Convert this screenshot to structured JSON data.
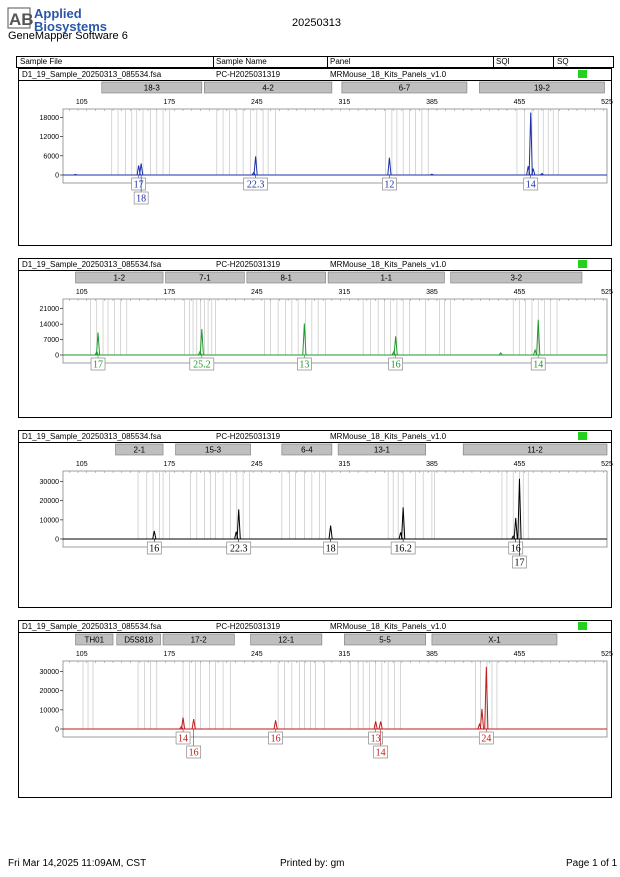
{
  "header": {
    "brand_line1": "Applied",
    "brand_line2": "Biosystems",
    "logo_letters": "AB",
    "app_name": "GeneMapper Software 6",
    "report_date": "20250313",
    "columns": [
      "Sample File",
      "Sample Name",
      "Panel",
      "SQI",
      "SQ"
    ]
  },
  "footer": {
    "timestamp": "Fri Mar 14,2025 11:09AM, CST",
    "printed_by": "Printed by: gm",
    "page": "Page 1 of 1"
  },
  "colors": {
    "blue": "#1b2fa8",
    "green": "#1e9a2a",
    "black": "#000000",
    "red": "#c11a1a",
    "sq_ok": "#23d11e",
    "marker_bar": "#bfbfbf",
    "bin_line": "#bbbbbb"
  },
  "panels": [
    {
      "sample_file": "D1_19_Sample_20250313_085534.fsa",
      "sample_name": "PC-H2025031319",
      "panel_name": "MRMouse_18_Kits_Panels_v1.0",
      "color": "#1b2fa8",
      "chart_data": {
        "type": "line",
        "x_ticks": [
          105,
          175,
          245,
          315,
          385,
          455,
          525
        ],
        "xlim": [
          90,
          525
        ],
        "y_ticks": [
          0,
          6000,
          12000,
          18000
        ],
        "ylim": [
          0,
          20000
        ],
        "markers": [
          {
            "label": "18-3",
            "from": 121,
            "to": 201
          },
          {
            "label": "4-2",
            "from": 203,
            "to": 305
          },
          {
            "label": "6-7",
            "from": 313,
            "to": 413
          },
          {
            "label": "19-2",
            "from": 423,
            "to": 523
          }
        ],
        "bins": [
          129,
          134,
          140,
          145,
          149,
          154,
          160,
          165,
          170,
          175,
          213,
          218,
          223,
          229,
          234,
          240,
          245,
          250,
          254,
          260,
          348,
          353,
          357,
          362,
          367,
          372,
          377,
          382,
          453,
          459,
          465,
          470,
          474,
          478,
          482,
          486
        ],
        "peaks": [
          {
            "x": 150.5,
            "h": 3000
          },
          {
            "x": 152.5,
            "h": 3600
          },
          {
            "x": 244,
            "h": 5800
          },
          {
            "x": 242.5,
            "h": 800
          },
          {
            "x": 351,
            "h": 5400
          },
          {
            "x": 462,
            "h": 2800
          },
          {
            "x": 464,
            "h": 19500
          },
          {
            "x": 466,
            "h": 2000
          },
          {
            "x": 473,
            "h": 500
          },
          {
            "x": 385,
            "h": 250
          },
          {
            "x": 100,
            "h": 200
          }
        ],
        "alleles": [
          {
            "label": "17",
            "x": 150.5,
            "row": 0
          },
          {
            "label": "18",
            "x": 152.5,
            "row": 1
          },
          {
            "label": "22.3",
            "x": 244,
            "row": 0
          },
          {
            "label": "12",
            "x": 351,
            "row": 0
          },
          {
            "label": "14",
            "x": 464,
            "row": 0
          }
        ]
      }
    },
    {
      "sample_file": "D1_19_Sample_20250313_085534.fsa",
      "sample_name": "PC-H2025031319",
      "panel_name": "MRMouse_18_Kits_Panels_v1.0",
      "color": "#1e9a2a",
      "chart_data": {
        "type": "line",
        "x_ticks": [
          105,
          175,
          245,
          315,
          385,
          455,
          525
        ],
        "xlim": [
          90,
          525
        ],
        "y_ticks": [
          0,
          7000,
          14000,
          21000
        ],
        "ylim": [
          0,
          24500
        ],
        "markers": [
          {
            "label": "1-2",
            "from": 100,
            "to": 170
          },
          {
            "label": "7-1",
            "from": 172,
            "to": 235
          },
          {
            "label": "8-1",
            "from": 237,
            "to": 300
          },
          {
            "label": "1-1",
            "from": 302,
            "to": 395
          },
          {
            "label": "3-2",
            "from": 400,
            "to": 505
          }
        ],
        "bins": [
          112,
          117,
          122,
          126,
          131,
          136,
          141,
          187,
          191,
          194,
          197,
          200,
          203,
          206,
          209,
          212,
          251,
          256,
          262,
          268,
          273,
          278,
          284,
          289,
          294,
          300,
          330,
          336,
          342,
          347,
          352,
          357,
          362,
          367,
          380,
          391,
          395,
          400,
          450,
          455,
          460,
          465,
          470,
          475,
          480,
          485
        ],
        "peaks": [
          {
            "x": 118,
            "h": 10200
          },
          {
            "x": 117,
            "h": 1500
          },
          {
            "x": 201,
            "h": 11800
          },
          {
            "x": 199.5,
            "h": 1500
          },
          {
            "x": 283,
            "h": 14300
          },
          {
            "x": 356,
            "h": 8500
          },
          {
            "x": 354.5,
            "h": 1500
          },
          {
            "x": 440,
            "h": 1000
          },
          {
            "x": 470,
            "h": 16000
          },
          {
            "x": 467.5,
            "h": 2200
          }
        ],
        "alleles": [
          {
            "label": "17",
            "x": 118,
            "row": 0
          },
          {
            "label": "25.2",
            "x": 201,
            "row": 0
          },
          {
            "label": "13",
            "x": 283,
            "row": 0
          },
          {
            "label": "16",
            "x": 356,
            "row": 0
          },
          {
            "label": "14",
            "x": 470,
            "row": 0
          }
        ]
      }
    },
    {
      "sample_file": "D1_19_Sample_20250313_085534.fsa",
      "sample_name": "PC-H2025031319",
      "panel_name": "MRMouse_18_Kits_Panels_v1.0",
      "color": "#000000",
      "chart_data": {
        "type": "line",
        "x_ticks": [
          105,
          175,
          245,
          315,
          385,
          455,
          525
        ],
        "xlim": [
          90,
          525
        ],
        "y_ticks": [
          0,
          10000,
          20000,
          30000
        ],
        "ylim": [
          0,
          34500
        ],
        "markers": [
          {
            "label": "2-1",
            "from": 132,
            "to": 170
          },
          {
            "label": "15-3",
            "from": 180,
            "to": 240
          },
          {
            "label": "6-4",
            "from": 265,
            "to": 305
          },
          {
            "label": "13-1",
            "from": 310,
            "to": 380
          },
          {
            "label": "11-2",
            "from": 410,
            "to": 525
          }
        ],
        "bins": [
          150,
          157,
          162,
          167,
          170,
          175,
          192,
          197,
          203,
          208,
          212,
          218,
          224,
          229,
          234,
          239,
          265,
          271,
          276,
          283,
          289,
          295,
          300,
          350,
          354,
          358,
          362,
          372,
          378,
          385,
          387,
          441,
          445,
          450,
          455,
          458,
          462
        ],
        "peaks": [
          {
            "x": 163,
            "h": 4200
          },
          {
            "x": 230.5,
            "h": 15500
          },
          {
            "x": 228.5,
            "h": 3800
          },
          {
            "x": 304,
            "h": 7000
          },
          {
            "x": 362,
            "h": 16500
          },
          {
            "x": 360,
            "h": 3500
          },
          {
            "x": 452,
            "h": 11000
          },
          {
            "x": 455,
            "h": 31500
          },
          {
            "x": 450,
            "h": 1500
          }
        ],
        "alleles": [
          {
            "label": "16",
            "x": 163,
            "row": 0
          },
          {
            "label": "22.3",
            "x": 230.5,
            "row": 0
          },
          {
            "label": "18",
            "x": 304,
            "row": 0
          },
          {
            "label": "16.2",
            "x": 362,
            "row": 0
          },
          {
            "label": "16",
            "x": 452,
            "row": 0
          },
          {
            "label": "17",
            "x": 455,
            "row": 1
          }
        ]
      }
    },
    {
      "sample_file": "D1_19_Sample_20250313_085534.fsa",
      "sample_name": "PC-H2025031319",
      "panel_name": "MRMouse_18_Kits_Panels_v1.0",
      "color": "#c11a1a",
      "chart_data": {
        "type": "line",
        "x_ticks": [
          105,
          175,
          245,
          315,
          385,
          455,
          525
        ],
        "xlim": [
          90,
          525
        ],
        "y_ticks": [
          0,
          10000,
          20000,
          30000
        ],
        "ylim": [
          0,
          34500
        ],
        "markers": [
          {
            "label": "TH01",
            "from": 100,
            "to": 130
          },
          {
            "label": "D5S818",
            "from": 133,
            "to": 168
          },
          {
            "label": "17-2",
            "from": 170,
            "to": 227
          },
          {
            "label": "12-1",
            "from": 240,
            "to": 297
          },
          {
            "label": "5-5",
            "from": 315,
            "to": 380
          },
          {
            "label": "X-1",
            "from": 385,
            "to": 485
          }
        ],
        "bins": [
          106,
          110,
          114,
          150,
          155,
          160,
          165,
          186,
          191,
          196,
          200,
          207,
          212,
          218,
          224,
          262,
          267,
          273,
          279,
          283,
          288,
          292,
          299,
          320,
          326,
          330,
          335,
          340,
          345,
          350,
          355,
          360,
          420,
          424,
          429,
          433,
          437
        ],
        "peaks": [
          {
            "x": 186,
            "h": 6000
          },
          {
            "x": 184.5,
            "h": 1200
          },
          {
            "x": 194.5,
            "h": 5200
          },
          {
            "x": 260,
            "h": 4500
          },
          {
            "x": 340,
            "h": 4000
          },
          {
            "x": 344,
            "h": 3900
          },
          {
            "x": 425,
            "h": 10500
          },
          {
            "x": 428.5,
            "h": 32500
          },
          {
            "x": 423,
            "h": 2500
          }
        ],
        "alleles": [
          {
            "label": "14",
            "x": 186,
            "row": 0
          },
          {
            "label": "16",
            "x": 194.5,
            "row": 1
          },
          {
            "label": "16",
            "x": 260,
            "row": 0
          },
          {
            "label": "13",
            "x": 340,
            "row": 0
          },
          {
            "label": "14",
            "x": 344,
            "row": 1
          },
          {
            "label": "24",
            "x": 428.5,
            "row": 0
          }
        ]
      }
    }
  ]
}
